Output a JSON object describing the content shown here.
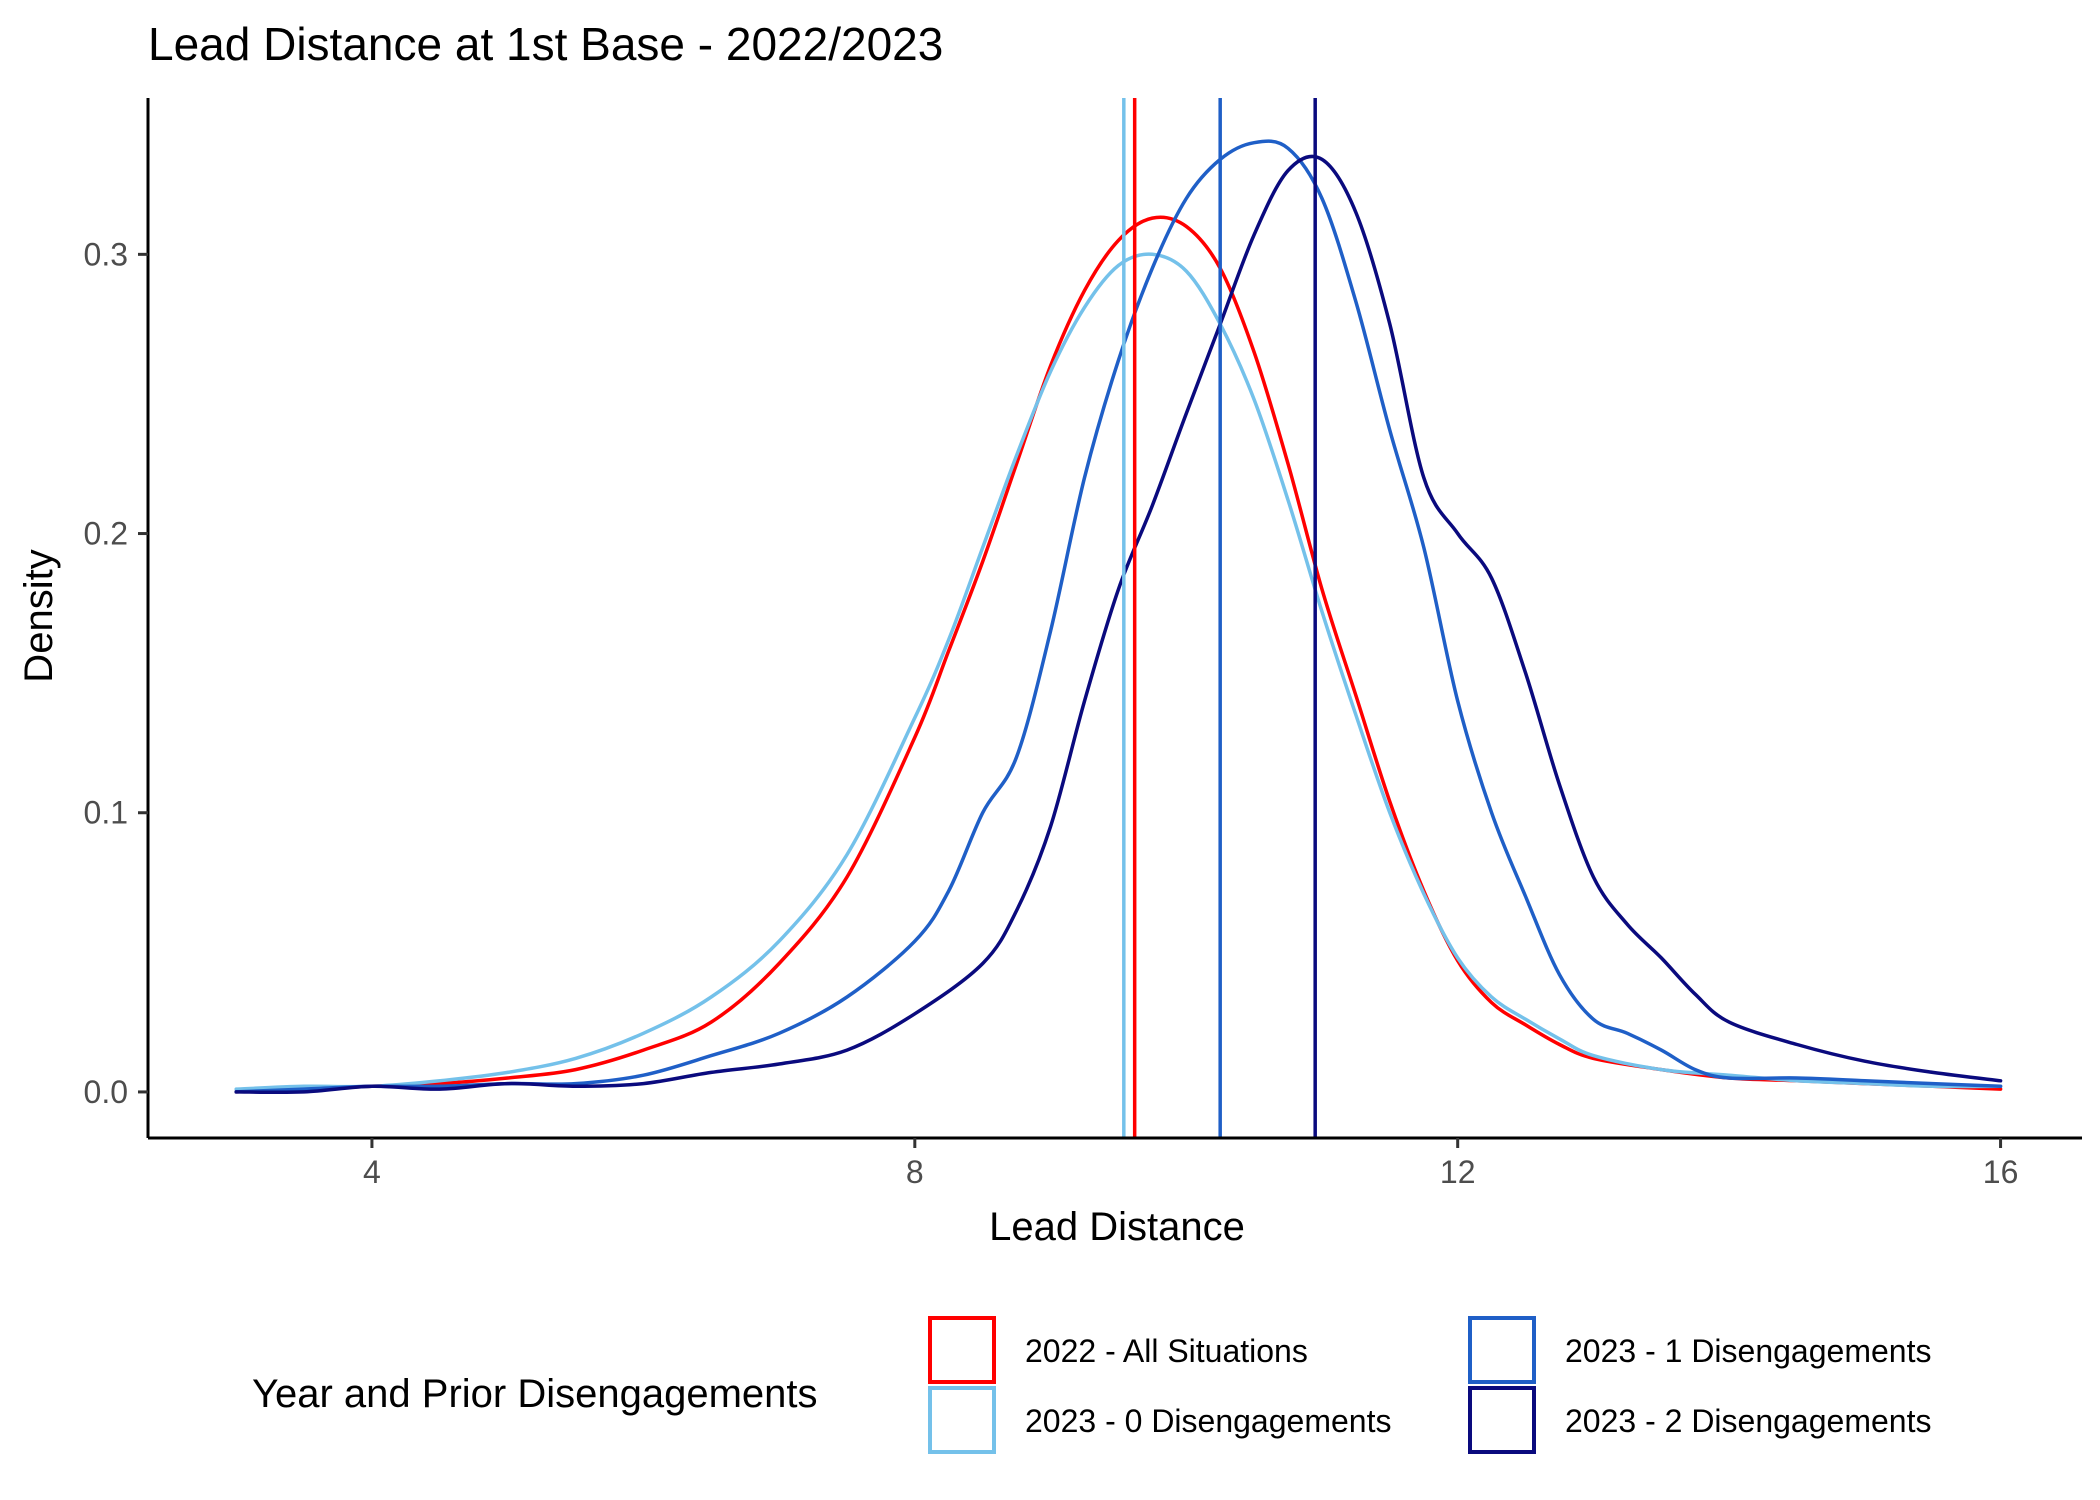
{
  "chart_data": {
    "type": "line",
    "title": "Lead Distance at 1st Base - 2022/2023",
    "xlabel": "Lead Distance",
    "ylabel": "Density",
    "xlim": [
      2.35,
      16.6
    ],
    "ylim": [
      -0.0165,
      0.356
    ],
    "x_ticks": [
      4,
      8,
      12,
      16
    ],
    "x_tick_labels": [
      "4",
      "8",
      "12",
      "16"
    ],
    "y_ticks": [
      0.0,
      0.1,
      0.2,
      0.3
    ],
    "y_tick_labels": [
      "0.0",
      "0.1",
      "0.2",
      "0.3"
    ],
    "grid": false,
    "legend": {
      "title": "Year and Prior Disengagements",
      "position": "bottom"
    },
    "series": [
      {
        "name": "2022 - All Situations",
        "color": "#ff0000",
        "mean": 9.62,
        "points": [
          [
            3.0,
            0.0
          ],
          [
            3.5,
            0.001
          ],
          [
            4.0,
            0.002
          ],
          [
            4.5,
            0.003
          ],
          [
            5.0,
            0.005
          ],
          [
            5.5,
            0.008
          ],
          [
            6.0,
            0.015
          ],
          [
            6.5,
            0.025
          ],
          [
            7.0,
            0.046
          ],
          [
            7.5,
            0.077
          ],
          [
            8.0,
            0.127
          ],
          [
            8.25,
            0.158
          ],
          [
            8.5,
            0.19
          ],
          [
            8.75,
            0.225
          ],
          [
            9.0,
            0.26
          ],
          [
            9.25,
            0.287
          ],
          [
            9.5,
            0.305
          ],
          [
            9.75,
            0.313
          ],
          [
            10.0,
            0.31
          ],
          [
            10.25,
            0.295
          ],
          [
            10.5,
            0.265
          ],
          [
            10.75,
            0.225
          ],
          [
            11.0,
            0.18
          ],
          [
            11.25,
            0.142
          ],
          [
            11.5,
            0.104
          ],
          [
            11.75,
            0.072
          ],
          [
            12.0,
            0.047
          ],
          [
            12.25,
            0.032
          ],
          [
            12.5,
            0.024
          ],
          [
            12.75,
            0.017
          ],
          [
            13.0,
            0.012
          ],
          [
            13.5,
            0.008
          ],
          [
            14.0,
            0.005
          ],
          [
            14.5,
            0.004
          ],
          [
            15.0,
            0.003
          ],
          [
            15.5,
            0.002
          ],
          [
            16.0,
            0.001
          ]
        ]
      },
      {
        "name": "2023 - 0 Disengagements",
        "color": "#74c1ea",
        "mean": 9.54,
        "points": [
          [
            3.0,
            0.001
          ],
          [
            3.5,
            0.002
          ],
          [
            4.0,
            0.002
          ],
          [
            4.5,
            0.004
          ],
          [
            5.0,
            0.007
          ],
          [
            5.5,
            0.012
          ],
          [
            6.0,
            0.021
          ],
          [
            6.5,
            0.034
          ],
          [
            7.0,
            0.054
          ],
          [
            7.5,
            0.085
          ],
          [
            8.0,
            0.134
          ],
          [
            8.25,
            0.162
          ],
          [
            8.5,
            0.195
          ],
          [
            8.75,
            0.228
          ],
          [
            9.0,
            0.258
          ],
          [
            9.25,
            0.281
          ],
          [
            9.5,
            0.296
          ],
          [
            9.75,
            0.3
          ],
          [
            10.0,
            0.294
          ],
          [
            10.25,
            0.275
          ],
          [
            10.5,
            0.248
          ],
          [
            10.75,
            0.212
          ],
          [
            11.0,
            0.172
          ],
          [
            11.25,
            0.135
          ],
          [
            11.5,
            0.1
          ],
          [
            11.75,
            0.071
          ],
          [
            12.0,
            0.048
          ],
          [
            12.25,
            0.034
          ],
          [
            12.5,
            0.026
          ],
          [
            12.75,
            0.019
          ],
          [
            13.0,
            0.013
          ],
          [
            13.5,
            0.008
          ],
          [
            14.0,
            0.006
          ],
          [
            14.5,
            0.004
          ],
          [
            15.0,
            0.003
          ],
          [
            15.5,
            0.002
          ],
          [
            16.0,
            0.002
          ]
        ]
      },
      {
        "name": "2023 - 1 Disengagements",
        "color": "#1f5fc7",
        "mean": 10.25,
        "points": [
          [
            3.0,
            0.0
          ],
          [
            3.5,
            0.001
          ],
          [
            4.0,
            0.002
          ],
          [
            4.5,
            0.002
          ],
          [
            5.0,
            0.003
          ],
          [
            5.5,
            0.003
          ],
          [
            6.0,
            0.006
          ],
          [
            6.5,
            0.013
          ],
          [
            7.0,
            0.021
          ],
          [
            7.5,
            0.034
          ],
          [
            8.0,
            0.054
          ],
          [
            8.25,
            0.072
          ],
          [
            8.5,
            0.1
          ],
          [
            8.75,
            0.12
          ],
          [
            9.0,
            0.165
          ],
          [
            9.25,
            0.22
          ],
          [
            9.5,
            0.262
          ],
          [
            9.75,
            0.295
          ],
          [
            10.0,
            0.32
          ],
          [
            10.25,
            0.334
          ],
          [
            10.5,
            0.34
          ],
          [
            10.75,
            0.338
          ],
          [
            11.0,
            0.32
          ],
          [
            11.25,
            0.283
          ],
          [
            11.5,
            0.237
          ],
          [
            11.75,
            0.195
          ],
          [
            12.0,
            0.14
          ],
          [
            12.25,
            0.1
          ],
          [
            12.5,
            0.07
          ],
          [
            12.75,
            0.042
          ],
          [
            13.0,
            0.026
          ],
          [
            13.25,
            0.021
          ],
          [
            13.5,
            0.015
          ],
          [
            13.75,
            0.008
          ],
          [
            14.0,
            0.005
          ],
          [
            14.5,
            0.005
          ],
          [
            15.0,
            0.004
          ],
          [
            15.5,
            0.003
          ],
          [
            16.0,
            0.002
          ]
        ]
      },
      {
        "name": "2023 - 2 Disengagements",
        "color": "#0a0a7e",
        "mean": 10.95,
        "points": [
          [
            3.0,
            0.0
          ],
          [
            3.5,
            0.0
          ],
          [
            4.0,
            0.002
          ],
          [
            4.5,
            0.001
          ],
          [
            5.0,
            0.003
          ],
          [
            5.5,
            0.002
          ],
          [
            6.0,
            0.003
          ],
          [
            6.5,
            0.007
          ],
          [
            7.0,
            0.01
          ],
          [
            7.5,
            0.015
          ],
          [
            8.0,
            0.028
          ],
          [
            8.5,
            0.046
          ],
          [
            8.75,
            0.065
          ],
          [
            9.0,
            0.095
          ],
          [
            9.25,
            0.14
          ],
          [
            9.5,
            0.18
          ],
          [
            9.75,
            0.21
          ],
          [
            10.0,
            0.243
          ],
          [
            10.25,
            0.275
          ],
          [
            10.5,
            0.307
          ],
          [
            10.75,
            0.33
          ],
          [
            11.0,
            0.334
          ],
          [
            11.25,
            0.315
          ],
          [
            11.5,
            0.275
          ],
          [
            11.75,
            0.22
          ],
          [
            12.0,
            0.2
          ],
          [
            12.25,
            0.184
          ],
          [
            12.5,
            0.15
          ],
          [
            12.75,
            0.11
          ],
          [
            13.0,
            0.077
          ],
          [
            13.25,
            0.06
          ],
          [
            13.5,
            0.048
          ],
          [
            13.75,
            0.035
          ],
          [
            14.0,
            0.025
          ],
          [
            14.5,
            0.017
          ],
          [
            15.0,
            0.011
          ],
          [
            15.5,
            0.007
          ],
          [
            16.0,
            0.004
          ]
        ]
      }
    ]
  }
}
